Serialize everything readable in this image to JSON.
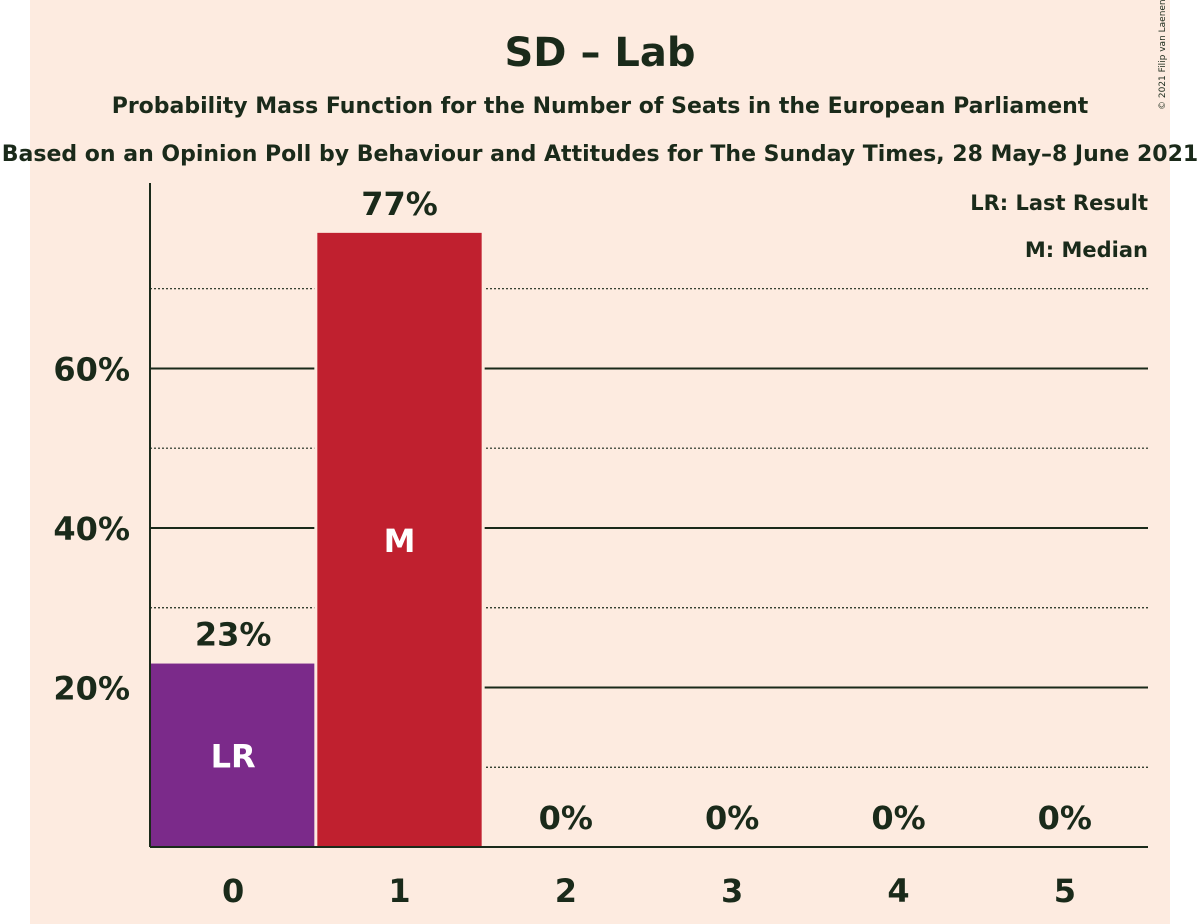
{
  "chart_data": {
    "type": "bar",
    "title": "SD – Lab",
    "subtitle": "Probability Mass Function for the Number of Seats in the European Parliament",
    "subtitle2": "Based on an Opinion Poll by Behaviour and Attitudes for The Sunday Times, 28 May–8 June 2021",
    "copyright": "© 2021 Filip van Laenen",
    "categories": [
      "0",
      "1",
      "2",
      "3",
      "4",
      "5"
    ],
    "values": [
      23,
      77,
      0,
      0,
      0,
      0
    ],
    "value_labels": [
      "23%",
      "77%",
      "0%",
      "0%",
      "0%",
      "0%"
    ],
    "bar_labels": [
      "LR",
      "M",
      "",
      "",
      "",
      ""
    ],
    "bar_colors": [
      "#7b2a8a",
      "#c0202f",
      "#c0202f",
      "#c0202f",
      "#c0202f",
      "#c0202f"
    ],
    "yticks": [
      20,
      40,
      60
    ],
    "ytick_labels": [
      "20%",
      "40%",
      "60%"
    ],
    "minor_grid": [
      10,
      30,
      50,
      70
    ],
    "ylim": [
      0,
      83
    ],
    "grid": true,
    "legend_position": "top-right",
    "legend": [
      "LR: Last Result",
      "M: Median"
    ]
  }
}
